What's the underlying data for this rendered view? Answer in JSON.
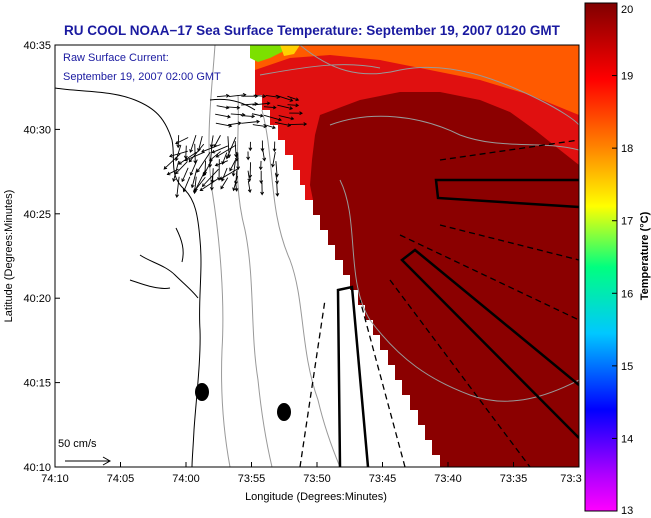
{
  "title": "RU COOL  NOAA−17  Sea Surface Temperature:  September 19, 2007 0120 GMT",
  "annotation": {
    "line1": "Raw Surface Current:",
    "line2": "September 19, 2007 02:00 GMT"
  },
  "scale_bar_label": "50 cm/s",
  "chart_data": {
    "type": "heatmap",
    "title": "RU COOL  NOAA−17  Sea Surface Temperature:  September 19, 2007 0120 GMT",
    "xlabel": "Longitude (Degrees:Minutes)",
    "ylabel": "Latitude (Degrees:Minutes)",
    "x_ticks": [
      "74:10",
      "74:05",
      "74:00",
      "73:55",
      "73:50",
      "73:45",
      "73:40",
      "73:35",
      "73:3"
    ],
    "y_ticks": [
      "40:35",
      "40:30",
      "40:25",
      "40:20",
      "40:15",
      "40:10"
    ],
    "colorbar": {
      "label": "Temperature (°C)",
      "range": [
        13,
        20
      ],
      "ticks": [
        "20",
        "19",
        "18",
        "17",
        "16",
        "15",
        "14",
        "13"
      ]
    }
  },
  "colors": {
    "title": "#1a1aa0",
    "sst_warm": "#8b0000",
    "sst_red": "#e01010",
    "sst_orange": "#ff5a00",
    "land": "#ffffff"
  }
}
